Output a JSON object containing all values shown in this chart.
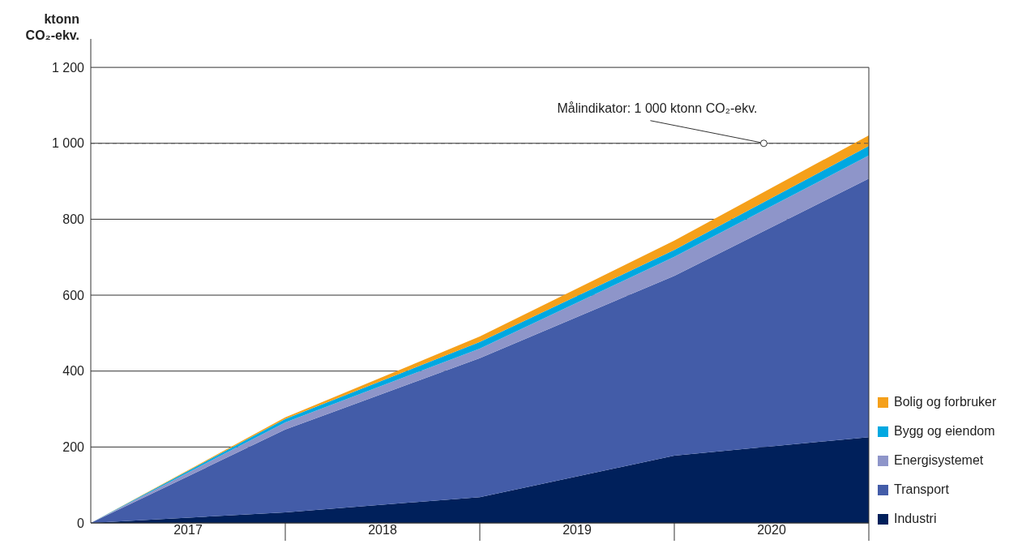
{
  "chart_data": {
    "type": "area",
    "stacked": true,
    "ylabel": "ktonn CO₂-ekv.",
    "x": [
      2017,
      2018,
      2019,
      2020,
      2021
    ],
    "xlim": [
      2017,
      2021
    ],
    "xticks": [
      {
        "value": 2017.5,
        "label": "2017"
      },
      {
        "value": 2018.5,
        "label": "2018"
      },
      {
        "value": 2019.5,
        "label": "2019"
      },
      {
        "value": 2020.5,
        "label": "2020"
      }
    ],
    "ylim": [
      0,
      1275
    ],
    "yticks": [
      0,
      200,
      400,
      600,
      800,
      {
        "value": 1000,
        "label": "1 000"
      },
      {
        "value": 1200,
        "label": "1 200"
      }
    ],
    "grid": "y",
    "legend": "bottom right",
    "series": [
      {
        "name": "Industri",
        "color": "#00205b",
        "values": [
          0,
          28,
          68,
          177,
          226
        ]
      },
      {
        "name": "Transport",
        "color": "#435ca8",
        "values": [
          0,
          218,
          366,
          474,
          681
        ]
      },
      {
        "name": "Energisystemet",
        "color": "#8e95c9",
        "values": [
          0,
          19,
          25,
          50,
          61
        ]
      },
      {
        "name": "Bygg og eiendom",
        "color": "#00a8e1",
        "values": [
          0,
          9,
          18,
          18,
          25
        ]
      },
      {
        "name": "Bolig og forbruker",
        "color": "#f5a01a",
        "values": [
          0,
          4,
          14,
          25,
          28
        ]
      }
    ],
    "ref_lines": [
      {
        "axis": "y",
        "value": 1000,
        "color": "#555555",
        "line_style": "dashed"
      }
    ],
    "annotations": [
      {
        "text": "Målindikator: 1 000 ktonn CO₂-ekv.",
        "x": 2020.46,
        "y": 1000
      }
    ]
  }
}
